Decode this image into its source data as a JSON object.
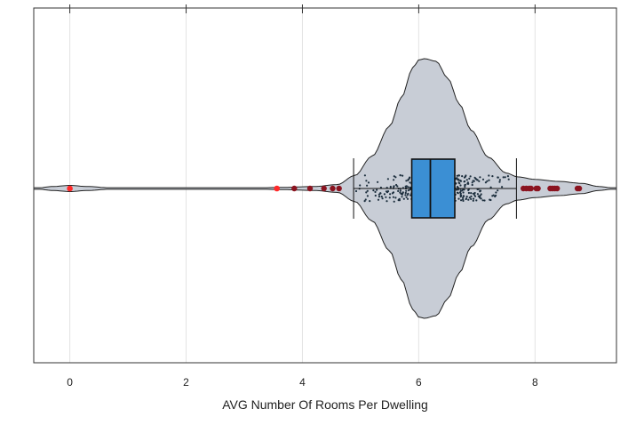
{
  "chart_data": {
    "type": "violin",
    "title": "",
    "xlabel": "AVG Number Of Rooms Per Dwelling",
    "ylabel": "",
    "xlim": [
      -0.62,
      9.4
    ],
    "x_ticks": [
      0,
      2,
      4,
      6,
      8
    ],
    "x_tick_labels": [
      "0",
      "2",
      "4",
      "6",
      "8"
    ],
    "grid": "vertical",
    "box": {
      "q1": 5.88,
      "median": 6.2,
      "q3": 6.62,
      "whisker_low": 4.88,
      "whisker_high": 7.68
    },
    "violin_profile": {
      "x": [
        -0.62,
        -0.3,
        0,
        0.3,
        0.8,
        1.5,
        3.0,
        3.6,
        4.2,
        4.6,
        4.9,
        5.2,
        5.5,
        5.7,
        5.9,
        6.0,
        6.1,
        6.3,
        6.5,
        6.7,
        6.9,
        7.2,
        7.5,
        7.7,
        8.0,
        8.4,
        8.8,
        9.1,
        9.4
      ],
      "density": [
        0.0,
        0.015,
        0.024,
        0.015,
        0.002,
        0.0,
        0.0,
        0.008,
        0.015,
        0.03,
        0.1,
        0.25,
        0.48,
        0.7,
        0.93,
        0.99,
        1.0,
        0.98,
        0.85,
        0.65,
        0.45,
        0.24,
        0.12,
        0.09,
        0.07,
        0.055,
        0.04,
        0.015,
        0.0
      ]
    },
    "outliers_red": [
      0.0,
      3.56
    ],
    "outliers_dark": [
      3.86,
      4.13,
      4.37,
      4.52,
      4.63,
      7.8,
      7.85,
      7.9,
      7.93,
      8.02,
      8.05,
      8.26,
      8.3,
      8.34,
      8.38,
      8.73,
      8.76
    ],
    "colors": {
      "violin_fill": "#c8cdd6",
      "box_fill": "#3b8fd4",
      "outlier_red": "#ff2a2a",
      "outlier_dark": "#8b1420",
      "points": "#1d2f3e"
    }
  }
}
